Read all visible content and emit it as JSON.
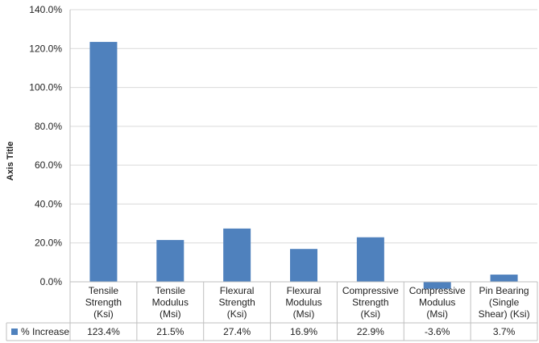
{
  "chart_data": {
    "type": "bar",
    "ylabel": "Axis Title",
    "ylim": [
      0,
      140
    ],
    "y_ticks": [
      "0.0%",
      "20.0%",
      "40.0%",
      "60.0%",
      "80.0%",
      "100.0%",
      "120.0%",
      "140.0%"
    ],
    "categories": [
      [
        "Tensile",
        "Strength",
        "(Ksi)"
      ],
      [
        "Tensile",
        "Modulus",
        "(Msi)"
      ],
      [
        "Flexural",
        "Strength",
        "(Ksi)"
      ],
      [
        "Flexural",
        "Modulus",
        "(Msi)"
      ],
      [
        "Compressive",
        "Strength",
        "(Ksi)"
      ],
      [
        "Compressive",
        "Modulus",
        "(Msi)"
      ],
      [
        "Pin Bearing",
        "(Single",
        "Shear) (Ksi)"
      ]
    ],
    "series": [
      {
        "name": "% Increase",
        "color": "#4F81BD",
        "values": [
          123.4,
          21.5,
          27.4,
          16.9,
          22.9,
          -3.6,
          3.7
        ],
        "table_values": [
          "123.4%",
          "21.5%",
          "27.4%",
          "16.9%",
          "22.9%",
          "-3.6%",
          "3.7%"
        ]
      }
    ],
    "grid": true,
    "legend": "data-table"
  }
}
